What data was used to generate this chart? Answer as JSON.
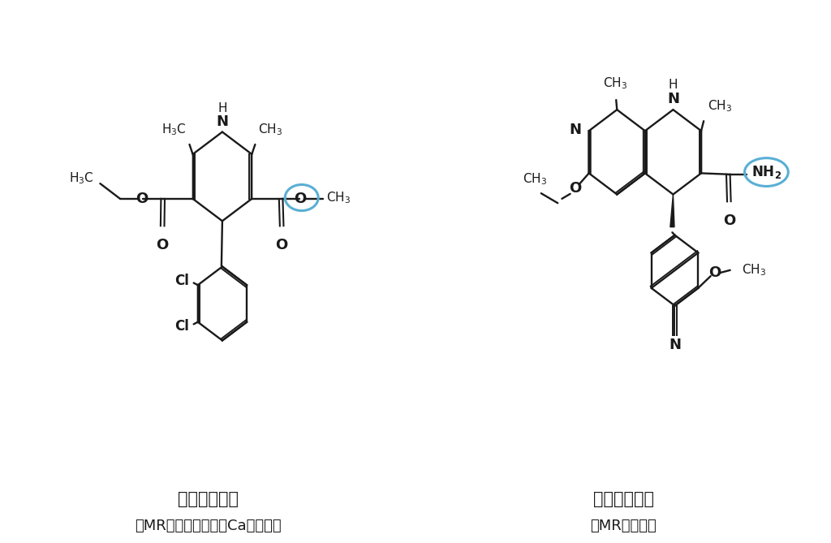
{
  "background_color": "#ffffff",
  "title1": "フェロジピン",
  "subtitle1": "（MR拮抗作用のあるCa拮抗薬）",
  "title2": "フィネレノン",
  "subtitle2": "（MR拮抗薬）",
  "title_fontsize": 15,
  "subtitle_fontsize": 13,
  "line_color": "#1a1a1a",
  "circle_color": "#5aafd4",
  "text_color": "#1a1a1a"
}
